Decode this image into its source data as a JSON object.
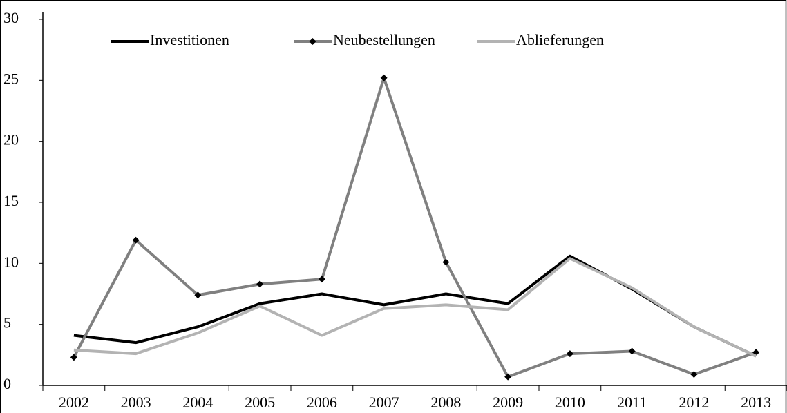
{
  "chart_data": {
    "type": "line",
    "categories": [
      "2002",
      "2003",
      "2004",
      "2005",
      "2006",
      "2007",
      "2008",
      "2009",
      "2010",
      "2011",
      "2012",
      "2013"
    ],
    "series": [
      {
        "name": "Investitionen",
        "color": "#000000",
        "values": [
          4.1,
          3.5,
          4.8,
          6.7,
          7.5,
          6.6,
          7.5,
          6.7,
          10.6,
          7.9,
          4.8,
          2.4
        ]
      },
      {
        "name": "Neubestellungen",
        "color": "#808080",
        "marker": "diamond",
        "marker_color": "#000000",
        "values": [
          2.3,
          11.9,
          7.4,
          8.3,
          8.7,
          25.2,
          10.1,
          0.7,
          2.6,
          2.8,
          0.9,
          2.7
        ]
      },
      {
        "name": "Ablieferungen",
        "color": "#b3b3b3",
        "values": [
          2.9,
          2.6,
          4.3,
          6.5,
          4.1,
          6.3,
          6.6,
          6.2,
          10.4,
          8.0,
          4.8,
          2.4
        ]
      }
    ],
    "ylim": [
      0,
      30
    ],
    "yticks": [
      0,
      5,
      10,
      15,
      20,
      25,
      30
    ],
    "grid": false,
    "legend": "top"
  }
}
